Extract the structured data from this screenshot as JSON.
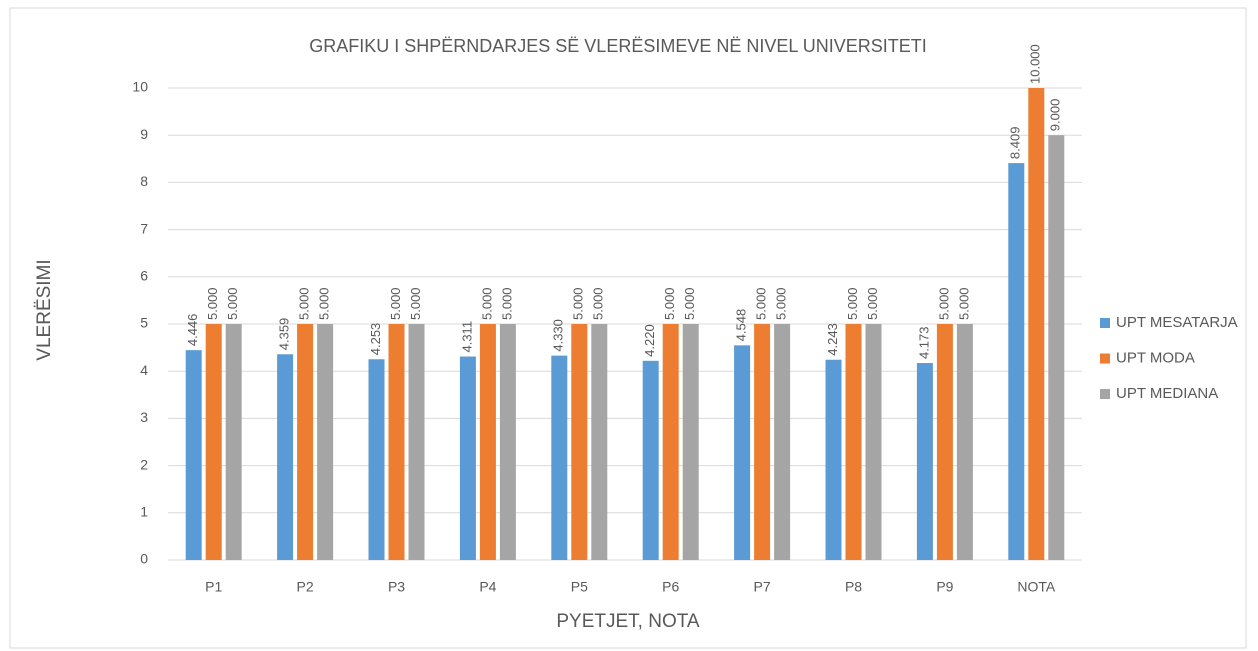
{
  "chart_data": {
    "type": "bar",
    "title": "GRAFIKU I SHPËRNDARJES SË VLERËSIMEVE NË NIVEL UNIVERSITETI",
    "xlabel": "PYETJET, NOTA",
    "ylabel": "VLERËSIMI",
    "categories": [
      "P1",
      "P2",
      "P3",
      "P4",
      "P5",
      "P6",
      "P7",
      "P8",
      "P9",
      "NOTA"
    ],
    "series": [
      {
        "name": "UPT MESATARJA",
        "color": "#5b9bd5",
        "values": [
          4.446,
          4.359,
          4.253,
          4.311,
          4.33,
          4.22,
          4.548,
          4.243,
          4.173,
          8.409
        ],
        "value_labels": [
          "4.446",
          "4.359",
          "4.253",
          "4.311",
          "4.330",
          "4.220",
          "4.548",
          "4.243",
          "4.173",
          "8.409"
        ]
      },
      {
        "name": "UPT MODA",
        "color": "#ed7d31",
        "values": [
          5,
          5,
          5,
          5,
          5,
          5,
          5,
          5,
          5,
          10
        ],
        "value_labels": [
          "5.000",
          "5.000",
          "5.000",
          "5.000",
          "5.000",
          "5.000",
          "5.000",
          "5.000",
          "5.000",
          "10.000"
        ]
      },
      {
        "name": "UPT MEDIANA",
        "color": "#a5a5a5",
        "values": [
          5,
          5,
          5,
          5,
          5,
          5,
          5,
          5,
          5,
          9
        ],
        "value_labels": [
          "5.000",
          "5.000",
          "5.000",
          "5.000",
          "5.000",
          "5.000",
          "5.000",
          "5.000",
          "5.000",
          "9.000"
        ]
      }
    ],
    "ylim": [
      0,
      10
    ],
    "yticks": [
      0,
      1,
      2,
      3,
      4,
      5,
      6,
      7,
      8,
      9,
      10
    ],
    "grid": true,
    "legend": "right"
  }
}
